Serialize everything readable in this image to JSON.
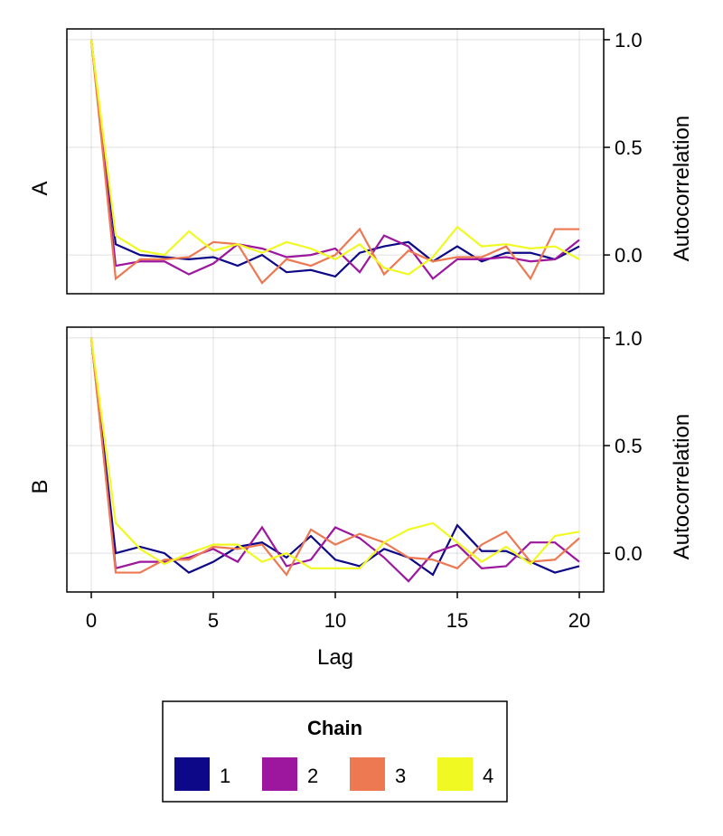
{
  "chart_data": {
    "type": "line",
    "xlabel": "Lag",
    "x_ticks": [
      "0",
      "5",
      "10",
      "15",
      "20"
    ],
    "xlim": [
      -1,
      21
    ],
    "grid": true,
    "legend": {
      "title": "Chain",
      "placement": "bottom-center",
      "entries": [
        {
          "label": "1",
          "color": "#0d0887"
        },
        {
          "label": "2",
          "color": "#9c179e"
        },
        {
          "label": "3",
          "color": "#ed7953"
        },
        {
          "label": "4",
          "color": "#f0f921"
        }
      ]
    },
    "panels": [
      {
        "label": "A",
        "ylabel": "Autocorrelation",
        "ylim": [
          -0.18,
          1.05
        ],
        "y_ticks": [
          "0.0",
          "0.5",
          "1.0"
        ],
        "x": [
          0,
          1,
          2,
          3,
          4,
          5,
          6,
          7,
          8,
          9,
          10,
          11,
          12,
          13,
          14,
          15,
          16,
          17,
          18,
          19,
          20
        ],
        "series": [
          {
            "name": "1",
            "color": "#0d0887",
            "values": [
              1.0,
              0.05,
              0.0,
              -0.01,
              -0.02,
              -0.01,
              -0.05,
              0.0,
              -0.08,
              -0.07,
              -0.1,
              0.01,
              0.04,
              0.06,
              -0.03,
              0.04,
              -0.03,
              0.01,
              0.01,
              -0.02,
              0.04
            ]
          },
          {
            "name": "2",
            "color": "#9c179e",
            "values": [
              1.0,
              -0.05,
              -0.03,
              -0.03,
              -0.09,
              -0.04,
              0.05,
              0.03,
              -0.01,
              0.0,
              0.03,
              -0.08,
              0.09,
              0.04,
              -0.11,
              -0.02,
              -0.02,
              -0.01,
              -0.03,
              -0.02,
              0.07
            ]
          },
          {
            "name": "3",
            "color": "#ed7953",
            "values": [
              1.0,
              -0.11,
              -0.02,
              -0.02,
              -0.01,
              0.06,
              0.05,
              -0.13,
              -0.02,
              -0.05,
              0.0,
              0.12,
              -0.09,
              0.02,
              -0.03,
              -0.01,
              -0.01,
              0.04,
              -0.11,
              0.12,
              0.12
            ]
          },
          {
            "name": "4",
            "color": "#f0f921",
            "values": [
              1.0,
              0.09,
              0.02,
              0.0,
              0.11,
              0.02,
              0.05,
              0.01,
              0.06,
              0.03,
              -0.02,
              0.05,
              -0.06,
              -0.09,
              -0.01,
              0.13,
              0.04,
              0.05,
              0.03,
              0.04,
              -0.02
            ]
          }
        ]
      },
      {
        "label": "B",
        "ylabel": "Autocorrelation",
        "ylim": [
          -0.18,
          1.05
        ],
        "y_ticks": [
          "0.0",
          "0.5",
          "1.0"
        ],
        "x": [
          0,
          1,
          2,
          3,
          4,
          5,
          6,
          7,
          8,
          9,
          10,
          11,
          12,
          13,
          14,
          15,
          16,
          17,
          18,
          19,
          20
        ],
        "series": [
          {
            "name": "1",
            "color": "#0d0887",
            "values": [
              1.0,
              0.0,
              0.03,
              0.0,
              -0.09,
              -0.04,
              0.03,
              0.05,
              -0.02,
              0.08,
              -0.03,
              -0.06,
              0.02,
              -0.02,
              -0.1,
              0.13,
              0.01,
              0.01,
              -0.04,
              -0.09,
              -0.06
            ]
          },
          {
            "name": "2",
            "color": "#9c179e",
            "values": [
              1.0,
              -0.07,
              -0.04,
              -0.04,
              -0.02,
              0.02,
              -0.04,
              0.12,
              -0.06,
              -0.03,
              0.12,
              0.07,
              -0.02,
              -0.13,
              0.0,
              0.04,
              -0.07,
              -0.06,
              0.05,
              0.05,
              -0.04
            ]
          },
          {
            "name": "3",
            "color": "#ed7953",
            "values": [
              1.0,
              -0.09,
              -0.09,
              -0.03,
              -0.03,
              0.03,
              0.02,
              0.04,
              -0.1,
              0.11,
              0.04,
              0.09,
              0.05,
              -0.02,
              -0.03,
              -0.07,
              0.04,
              0.1,
              -0.04,
              -0.03,
              0.07
            ]
          },
          {
            "name": "4",
            "color": "#f0f921",
            "values": [
              1.0,
              0.14,
              0.02,
              -0.05,
              0.0,
              0.04,
              0.04,
              -0.04,
              0.0,
              -0.07,
              -0.07,
              -0.07,
              0.05,
              0.11,
              0.14,
              0.05,
              -0.04,
              0.03,
              -0.05,
              0.08,
              0.1
            ]
          }
        ]
      }
    ]
  }
}
